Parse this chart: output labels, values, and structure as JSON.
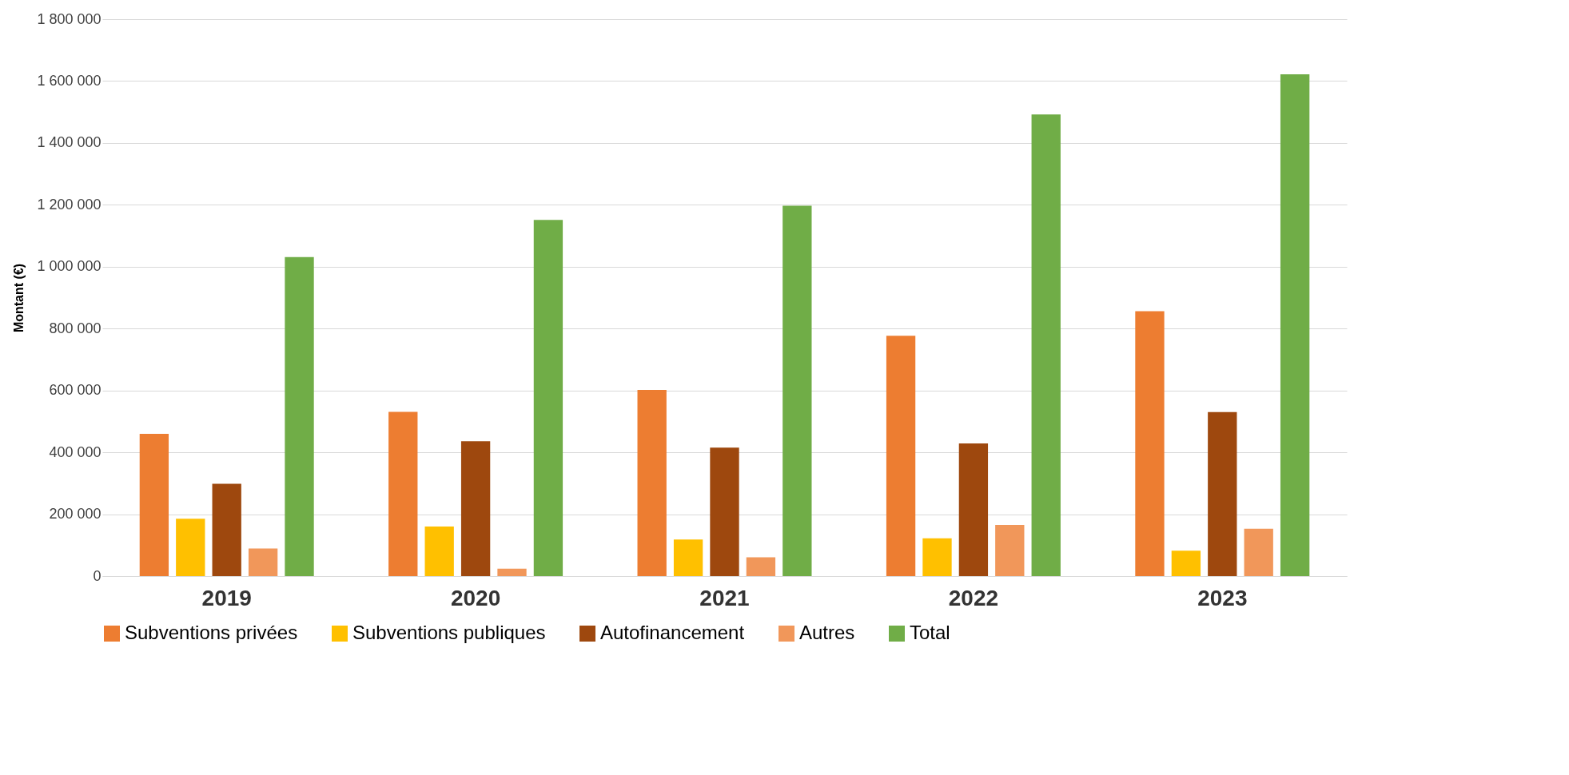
{
  "chart_data": {
    "type": "bar",
    "ylabel": "Montant (€)",
    "categories": [
      "2019",
      "2020",
      "2021",
      "2022",
      "2023"
    ],
    "series": [
      {
        "name": "Subventions privées",
        "color": "#ed7d31",
        "values": [
          460000,
          531000,
          602000,
          777000,
          856000
        ]
      },
      {
        "name": "Subventions publiques",
        "color": "#ffc000",
        "values": [
          185000,
          160000,
          118000,
          122000,
          82000
        ]
      },
      {
        "name": "Autofinancement",
        "color": "#9e480e",
        "values": [
          298000,
          436000,
          415000,
          429000,
          530000
        ]
      },
      {
        "name": "Autres",
        "color": "#f1975a",
        "values": [
          89000,
          24000,
          61000,
          165000,
          153000
        ]
      },
      {
        "name": "Total",
        "color": "#70ad47",
        "values": [
          1031000,
          1151000,
          1197000,
          1492000,
          1622000
        ]
      }
    ],
    "ylim": [
      0,
      1800000
    ],
    "yticks": [
      0,
      {
        "value": 200000,
        "label": "200 000"
      },
      {
        "value": 400000,
        "label": "400 000"
      },
      {
        "value": 600000,
        "label": "600 000"
      },
      {
        "value": 800000,
        "label": "800 000"
      },
      {
        "value": 1000000,
        "label": "1 000 000"
      },
      {
        "value": 1200000,
        "label": "1 200 000"
      },
      {
        "value": 1400000,
        "label": "1 400 000"
      },
      {
        "value": 1600000,
        "label": "1 600 000"
      },
      {
        "value": 1800000,
        "label": "1 800 000"
      }
    ],
    "grid": "y",
    "legend": "bottom"
  }
}
